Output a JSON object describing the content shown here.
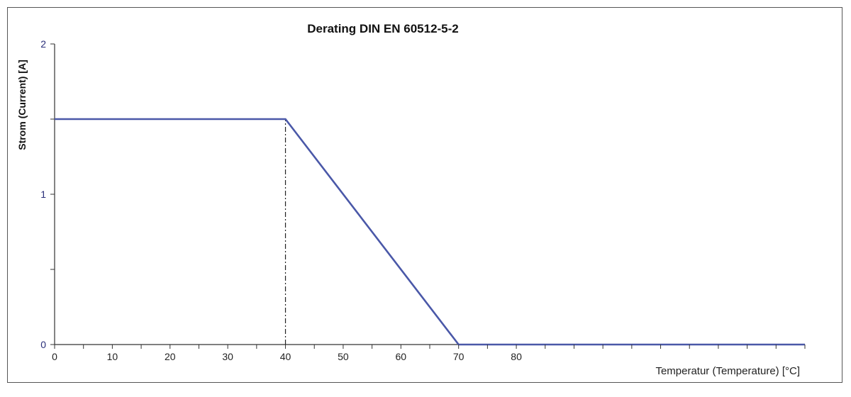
{
  "colors": {
    "series": "#4a58a8",
    "axis": "#333333",
    "guide": "#222222",
    "ytick_text": "#2a2f7a"
  },
  "chart_data": {
    "type": "line",
    "title": "Derating DIN EN 60512-5-2",
    "xlabel": "Temperatur (Temperature) [°C]",
    "ylabel": "Strom (Current) [A]",
    "xlim": [
      0,
      130
    ],
    "ylim": [
      0,
      2
    ],
    "x_major_ticks": [
      0,
      10,
      20,
      30,
      40,
      50,
      60,
      70,
      80
    ],
    "x_minor_step": 5,
    "y_major_ticks": [
      0,
      1,
      2
    ],
    "y_minor_ticks": [
      0.5,
      1.5
    ],
    "grid": false,
    "legend": "none",
    "series": [
      {
        "x": [
          0,
          40,
          70,
          130
        ],
        "y": [
          1.5,
          1.5,
          0,
          0
        ]
      }
    ],
    "guide_lines": [
      {
        "style": "dash-dot",
        "from": [
          40,
          0
        ],
        "to": [
          40,
          1.5
        ]
      },
      {
        "style": "dashed",
        "from": [
          0,
          1.5
        ],
        "to": [
          40,
          1.5
        ]
      }
    ]
  }
}
